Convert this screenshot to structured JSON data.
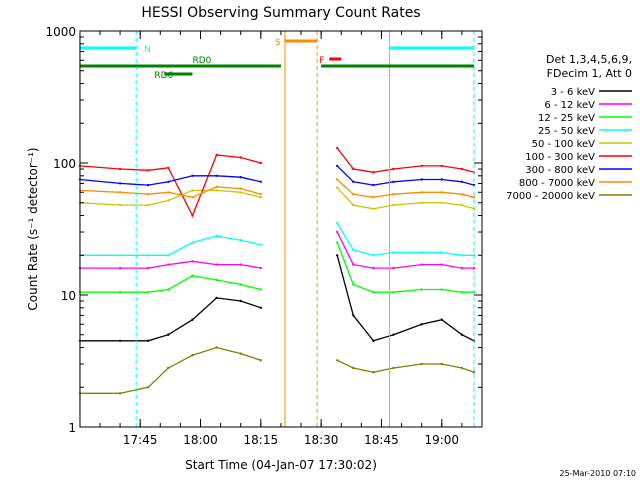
{
  "chart_data": {
    "type": "line",
    "title": "HESSI Observing Summary Count Rates",
    "xlabel": "Start Time (04-Jan-07 17:30:02)",
    "ylabel": "Count Rate (s⁻¹ detector⁻¹)",
    "yscale": "log",
    "ylim": [
      1,
      1000
    ],
    "xlim": [
      "17:30:02",
      "19:10:00"
    ],
    "x_ticks": [
      "17:45",
      "18:00",
      "18:15",
      "18:30",
      "18:45",
      "19:00"
    ],
    "y_ticks": [
      "1",
      "10",
      "100",
      "1000"
    ],
    "grid": false,
    "legend": {
      "placement": "right",
      "header": [
        "Det 1,3,4,5,6,9,",
        "FDecim 1, Att 0"
      ]
    },
    "footer": "25-Mar-2010 07:10",
    "x": [
      "17:30",
      "17:40",
      "17:47",
      "17:52",
      "17:58",
      "18:04",
      "18:10",
      "18:15",
      "18:20",
      "18:25",
      "18:30",
      "18:34",
      "18:38",
      "18:43",
      "18:48",
      "18:55",
      "19:00",
      "19:05",
      "19:08"
    ],
    "series": [
      {
        "name": "3 - 6 keV",
        "color": "#000000",
        "values": [
          4.5,
          4.5,
          4.5,
          5.0,
          6.5,
          9.5,
          9.0,
          8.0,
          null,
          null,
          null,
          20,
          7.0,
          4.5,
          5.0,
          6.0,
          6.5,
          5.0,
          4.5
        ]
      },
      {
        "name": "6 - 12 keV",
        "color": "#ff00ff",
        "values": [
          16,
          16,
          16,
          17,
          18,
          17,
          17,
          16,
          null,
          null,
          null,
          30,
          17,
          16,
          16,
          17,
          17,
          16,
          16
        ]
      },
      {
        "name": "12 - 25 keV",
        "color": "#00ff00",
        "values": [
          10.5,
          10.5,
          10.5,
          11,
          14,
          13,
          12,
          11,
          null,
          null,
          null,
          25,
          12,
          10.5,
          10.5,
          11,
          11,
          10.5,
          10.5
        ]
      },
      {
        "name": "25 - 50 keV",
        "color": "#00ffff",
        "values": [
          20,
          20,
          20,
          20,
          25,
          28,
          26,
          24,
          null,
          null,
          null,
          35,
          22,
          20,
          21,
          21,
          21,
          20,
          20
        ]
      },
      {
        "name": "50 - 100 keV",
        "color": "#c8c800",
        "values": [
          50,
          48,
          48,
          52,
          62,
          62,
          60,
          55,
          null,
          null,
          null,
          65,
          48,
          45,
          48,
          50,
          50,
          48,
          45
        ]
      },
      {
        "name": "100 - 300 keV",
        "color": "#ff0000",
        "values": [
          95,
          90,
          88,
          92,
          40,
          115,
          110,
          100,
          null,
          null,
          null,
          130,
          90,
          85,
          90,
          95,
          95,
          90,
          85
        ]
      },
      {
        "name": "300 - 800 keV",
        "color": "#0000ff",
        "values": [
          75,
          70,
          68,
          72,
          80,
          80,
          78,
          72,
          null,
          null,
          null,
          95,
          72,
          68,
          72,
          75,
          75,
          72,
          68
        ]
      },
      {
        "name": "800 - 7000 keV",
        "color": "#ff8c00",
        "values": [
          62,
          60,
          58,
          60,
          55,
          66,
          64,
          58,
          null,
          null,
          null,
          75,
          58,
          55,
          58,
          60,
          60,
          58,
          55
        ]
      },
      {
        "name": "7000 - 20000 keV",
        "color": "#808000",
        "values": [
          1.8,
          1.8,
          2.0,
          2.8,
          3.5,
          4.0,
          3.6,
          3.2,
          null,
          null,
          null,
          3.2,
          2.8,
          2.6,
          2.8,
          3.0,
          3.0,
          2.8,
          2.6
        ]
      }
    ],
    "annotations": [
      {
        "label": "N",
        "color": "#00ffff",
        "segments": [
          [
            "17:30",
            "17:44"
          ],
          [
            "18:47",
            "19:08"
          ]
        ]
      },
      {
        "label": "RD0",
        "color": "#008000",
        "segments": [
          [
            "17:30",
            "18:20"
          ],
          [
            "18:30",
            "19:08"
          ]
        ]
      },
      {
        "label": "RD6",
        "color": "#008000",
        "segments": [
          [
            "17:51",
            "17:58"
          ]
        ]
      },
      {
        "label": "S",
        "color": "#ff8c00",
        "segments": [
          [
            "18:21",
            "18:29"
          ]
        ]
      },
      {
        "label": "F",
        "color": "#ff0000",
        "segments": [
          [
            "18:32",
            "18:35"
          ]
        ]
      }
    ]
  }
}
